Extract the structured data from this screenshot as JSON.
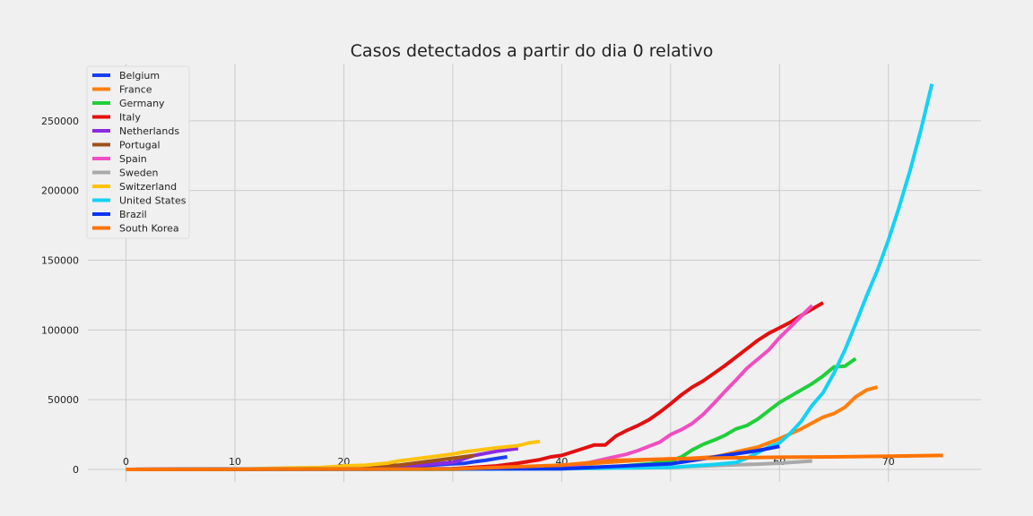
{
  "chart_data": {
    "type": "line",
    "title": "Casos detectados a partir do dia 0 relativo",
    "xlabel": "",
    "ylabel": "",
    "xlim": [
      -3.5,
      78.5
    ],
    "ylim": [
      -9000,
      291000
    ],
    "x_ticks": [
      0,
      10,
      20,
      30,
      40,
      50,
      60,
      70
    ],
    "y_ticks": [
      0,
      50000,
      100000,
      150000,
      200000,
      250000
    ],
    "grid": true,
    "legend_position": "top-left",
    "series": [
      {
        "name": "Belgium",
        "color": "#1a3ff0",
        "x": [
          0,
          5,
          10,
          15,
          20,
          25,
          28,
          30,
          31,
          32,
          33,
          34,
          35
        ],
        "y": [
          0,
          50,
          100,
          300,
          800,
          2000,
          3000,
          4000,
          4300,
          5500,
          6500,
          7800,
          9000
        ]
      },
      {
        "name": "France",
        "color": "#ff7f0e",
        "x": [
          0,
          10,
          20,
          30,
          36,
          40,
          44,
          46,
          48,
          50,
          52,
          54,
          55,
          56,
          58,
          60,
          62,
          64,
          65,
          66,
          67,
          68,
          69
        ],
        "y": [
          0,
          50,
          100,
          200,
          800,
          2500,
          5000,
          6000,
          7000,
          7500,
          8000,
          9000,
          10500,
          12500,
          16000,
          22000,
          29000,
          37500,
          40000,
          44500,
          52000,
          57000,
          59000
        ]
      },
      {
        "name": "Germany",
        "color": "#1fcf3a",
        "x": [
          0,
          20,
          30,
          40,
          45,
          48,
          50,
          51,
          52,
          53,
          54,
          55,
          56,
          57,
          58,
          59,
          60,
          61,
          62,
          63,
          64,
          65,
          66,
          67
        ],
        "y": [
          0,
          100,
          200,
          800,
          2000,
          4000,
          6000,
          9000,
          14000,
          18000,
          21000,
          24500,
          29000,
          31500,
          36000,
          42000,
          48000,
          52500,
          57000,
          61500,
          67000,
          73500,
          74000,
          79500
        ]
      },
      {
        "name": "Italy",
        "color": "#e40f0f",
        "x": [
          0,
          20,
          30,
          34,
          36,
          38,
          39,
          40,
          41,
          42,
          43,
          44,
          45,
          46,
          47,
          48,
          49,
          50,
          51,
          52,
          53,
          54,
          55,
          56,
          57,
          58,
          59,
          60,
          61,
          62,
          63,
          64
        ],
        "y": [
          0,
          100,
          500,
          2500,
          4500,
          7000,
          9000,
          10000,
          12500,
          15000,
          17500,
          17500,
          24000,
          28000,
          31500,
          35500,
          41000,
          47000,
          53500,
          59000,
          63500,
          69000,
          74500,
          80500,
          86500,
          92500,
          97500,
          101500,
          105500,
          110500,
          115000,
          119500
        ]
      },
      {
        "name": "Netherlands",
        "color": "#8a2be2",
        "x": [
          0,
          10,
          15,
          20,
          25,
          30,
          32,
          34,
          36
        ],
        "y": [
          0,
          100,
          500,
          1000,
          2000,
          5000,
          10000,
          13000,
          15000
        ]
      },
      {
        "name": "Portugal",
        "color": "#a0501a",
        "x": [
          0,
          10,
          15,
          20,
          25,
          28,
          30,
          32
        ],
        "y": [
          0,
          50,
          300,
          1000,
          3000,
          6000,
          8000,
          10000
        ]
      },
      {
        "name": "Spain",
        "color": "#f04ec0",
        "x": [
          0,
          30,
          40,
          42,
          44,
          46,
          47,
          48,
          49,
          50,
          51,
          52,
          53,
          54,
          55,
          56,
          57,
          58,
          59,
          60,
          61,
          62,
          63
        ],
        "y": [
          0,
          300,
          2000,
          4000,
          7500,
          11000,
          13500,
          16500,
          19500,
          25000,
          28500,
          33000,
          39500,
          47500,
          56000,
          64000,
          72500,
          79000,
          85500,
          94500,
          102000,
          110000,
          117500
        ]
      },
      {
        "name": "Sweden",
        "color": "#a9a9a9",
        "x": [
          0,
          20,
          30,
          40,
          50,
          55,
          58,
          60,
          62,
          63
        ],
        "y": [
          0,
          50,
          200,
          500,
          1500,
          3000,
          3800,
          4500,
          5500,
          6000
        ]
      },
      {
        "name": "Switzerland",
        "color": "#ffc20e",
        "x": [
          0,
          10,
          15,
          18,
          20,
          22,
          24,
          25,
          26,
          28,
          30,
          31,
          32,
          34,
          36,
          37,
          38
        ],
        "y": [
          0,
          100,
          1000,
          1500,
          2500,
          3000,
          4500,
          6000,
          7000,
          9000,
          11000,
          12500,
          13500,
          15500,
          17000,
          19000,
          20000
        ]
      },
      {
        "name": "United States",
        "color": "#14d2f2",
        "x": [
          0,
          30,
          40,
          50,
          54,
          56,
          57,
          58,
          59,
          60,
          61,
          62,
          63,
          64,
          65,
          66,
          67,
          68,
          69,
          70,
          71,
          72,
          73,
          74
        ],
        "y": [
          0,
          200,
          500,
          1500,
          3500,
          5000,
          8000,
          12000,
          16000,
          19000,
          26000,
          34500,
          46000,
          55000,
          69000,
          85500,
          104500,
          124500,
          143000,
          164500,
          188500,
          214500,
          244000,
          276500
        ]
      },
      {
        "name": "Brazil",
        "color": "#0c33f0",
        "x": [
          0,
          40,
          50,
          55,
          58,
          60
        ],
        "y": [
          0,
          500,
          4000,
          10000,
          13500,
          16500
        ]
      },
      {
        "name": "South Korea",
        "color": "#ff7200",
        "x": [
          0,
          30,
          40,
          45,
          50,
          55,
          60,
          65,
          70,
          75
        ],
        "y": [
          0,
          300,
          3000,
          6500,
          7500,
          8300,
          8700,
          9000,
          9500,
          10000
        ]
      }
    ]
  }
}
